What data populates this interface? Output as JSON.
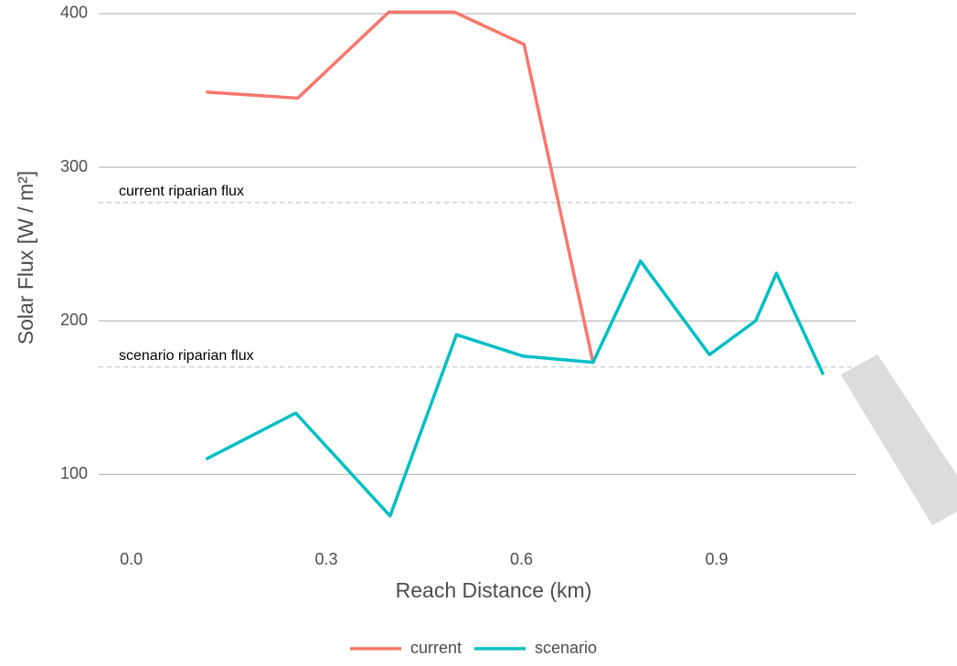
{
  "chart_data": {
    "type": "line",
    "x_label": "Reach Distance (km)",
    "y_label": "Solar Flux [W / m²]",
    "series": [
      {
        "name": "current",
        "color": "#f8766d",
        "x": [
          0.115,
          0.256,
          0.396,
          0.497,
          0.604,
          0.71
        ],
        "values": [
          349,
          345,
          401,
          401,
          380,
          173
        ]
      },
      {
        "name": "scenario",
        "color": "#00bfc4",
        "x": [
          0.115,
          0.253,
          0.398,
          0.5,
          0.603,
          0.71,
          0.783,
          0.889,
          0.96,
          0.992,
          1.064
        ],
        "values": [
          110,
          140,
          73,
          191,
          177,
          173,
          239,
          178,
          200,
          231,
          165
        ]
      }
    ],
    "reference_lines": [
      {
        "label": "current riparian flux",
        "value": 277
      },
      {
        "label": "scenario riparian flux",
        "value": 170
      }
    ],
    "xlim": [
      -0.05,
      1.115
    ],
    "ylim": [
      58,
      402
    ],
    "xticks": [
      {
        "value": 0,
        "label": "0.0"
      },
      0.3,
      0.6,
      0.9
    ],
    "yticks": [
      100,
      200,
      300,
      400
    ],
    "grid": true,
    "legend": "bottom"
  }
}
